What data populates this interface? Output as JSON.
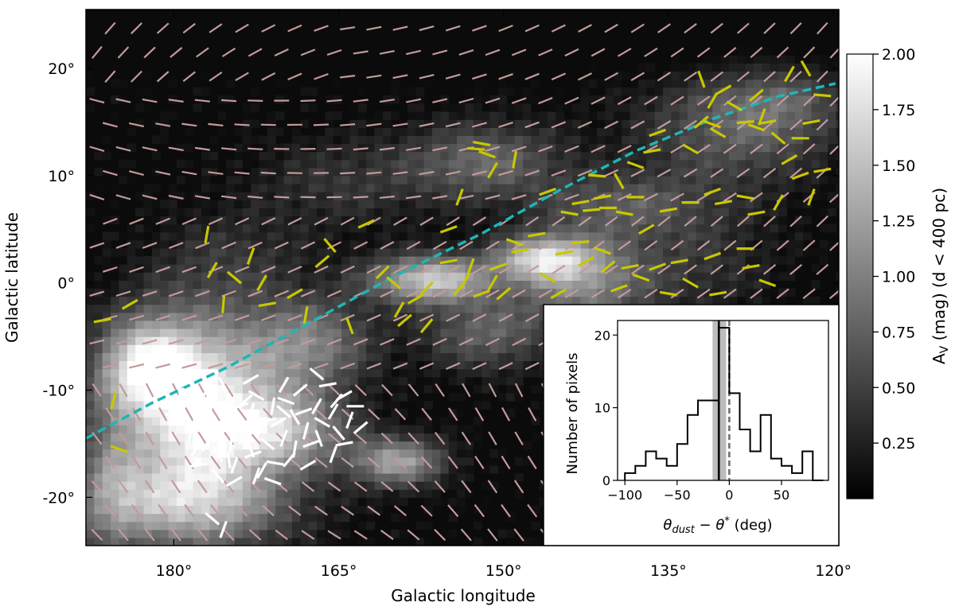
{
  "colors": {
    "planck_segments": "#c49a9a",
    "yellow_segments": "#c8c800",
    "white_segments": "#ffffff",
    "galactic_line": "#1fb5b5",
    "hist_line": "#000000",
    "median_band": "#b0b0b0",
    "zero_line": "#707070"
  },
  "chart_data": [
    {
      "type": "heatmap",
      "subtype": "sky map with polarization segments",
      "xlabel": "Galactic longitude",
      "ylabel": "Galactic latitude",
      "xlim": [
        188,
        119.5
      ],
      "ylim": [
        -24.5,
        25.5
      ],
      "x_ticks": [
        180,
        165,
        150,
        135,
        120
      ],
      "x_tick_labels": [
        "180°",
        "165°",
        "150°",
        "135°",
        "120°"
      ],
      "y_ticks": [
        20,
        10,
        0,
        -10,
        -20
      ],
      "y_tick_labels": [
        "20°",
        "10°",
        "0°",
        "-10°",
        "-20°"
      ],
      "colorbar": {
        "label": "A_V (mag) (d < 400 pc)",
        "range": [
          0,
          2
        ],
        "ticks": [
          0.25,
          0.5,
          0.75,
          1.0,
          1.25,
          1.5,
          1.75,
          2.0
        ],
        "tick_labels": [
          "0.25",
          "0.50",
          "0.75",
          "1.00",
          "1.25",
          "1.50",
          "1.75",
          "2.00"
        ],
        "colormap": "gray"
      },
      "dashed_curve": {
        "description": "cyan dashed curve",
        "x": [
          188,
          182,
          175,
          168,
          160,
          152,
          145,
          138,
          131,
          125,
          119.8
        ],
        "y": [
          -14.5,
          -11.2,
          -7.8,
          -3.9,
          0.6,
          4.6,
          8.6,
          12.3,
          15.3,
          17.4,
          18.6
        ]
      },
      "dust_clouds": [
        {
          "l": 178,
          "b": -12,
          "sx": 5,
          "sy": 6,
          "amp": 1.9
        },
        {
          "l": 183,
          "b": -8,
          "sx": 3,
          "sy": 3,
          "amp": 1.3
        },
        {
          "l": 170,
          "b": -14,
          "sx": 4,
          "sy": 2.5,
          "amp": 1.1
        },
        {
          "l": 160,
          "b": -17,
          "sx": 3,
          "sy": 1.6,
          "amp": 1.2
        },
        {
          "l": 180,
          "b": -21,
          "sx": 7,
          "sy": 3,
          "amp": 1.1
        },
        {
          "l": 168,
          "b": -6,
          "sx": 4,
          "sy": 3,
          "amp": 0.9
        },
        {
          "l": 157,
          "b": 0,
          "sx": 4,
          "sy": 1.6,
          "amp": 1.5
        },
        {
          "l": 147,
          "b": 2,
          "sx": 3,
          "sy": 1.5,
          "amp": 1.3
        },
        {
          "l": 143,
          "b": 0,
          "sx": 4,
          "sy": 3,
          "amp": 1.0
        },
        {
          "l": 152,
          "b": -5,
          "sx": 4,
          "sy": 2.5,
          "amp": 0.7
        },
        {
          "l": 152,
          "b": 11,
          "sx": 5,
          "sy": 2.5,
          "amp": 0.75
        },
        {
          "l": 140,
          "b": 7,
          "sx": 5,
          "sy": 2,
          "amp": 0.55
        },
        {
          "l": 130,
          "b": 14,
          "sx": 6,
          "sy": 4,
          "amp": 0.6
        },
        {
          "l": 125,
          "b": 17,
          "sx": 4,
          "sy": 3,
          "amp": 0.5
        },
        {
          "l": 165,
          "b": 9,
          "sx": 6,
          "sy": 3,
          "amp": 0.35
        },
        {
          "l": 175,
          "b": 2,
          "sx": 5,
          "sy": 3,
          "amp": 0.3
        },
        {
          "l": 133,
          "b": 2,
          "sx": 5,
          "sy": 4,
          "amp": 0.35
        },
        {
          "l": 186,
          "b": -18,
          "sx": 2,
          "sy": 5,
          "amp": 0.5
        }
      ],
      "planck_field": {
        "l_grid": [
          187,
          119.5,
          2.4
        ],
        "b_grid": [
          -23.5,
          25,
          2.25
        ],
        "angle_model": "smooth field, angle in degrees from horizontal"
      },
      "yellow_segments": [
        [
          186.5,
          -3.5,
          10
        ],
        [
          185.5,
          -11,
          75
        ],
        [
          185,
          -15.5,
          -20
        ],
        [
          184,
          -2,
          30
        ],
        [
          177,
          4.5,
          80
        ],
        [
          176.5,
          1.2,
          60
        ],
        [
          175.5,
          -2,
          85
        ],
        [
          174.5,
          0.5,
          -40
        ],
        [
          173,
          2.5,
          70
        ],
        [
          172,
          0,
          60
        ],
        [
          171.5,
          -2,
          10
        ],
        [
          169,
          -1,
          30
        ],
        [
          168,
          -3,
          80
        ],
        [
          166.5,
          2,
          40
        ],
        [
          165.8,
          3.5,
          -50
        ],
        [
          164,
          -4,
          -70
        ],
        [
          162.5,
          5.5,
          25
        ],
        [
          161,
          1,
          45
        ],
        [
          160,
          0,
          -40
        ],
        [
          159.5,
          -2.5,
          60
        ],
        [
          159,
          -3.5,
          40
        ],
        [
          158,
          -1.5,
          30
        ],
        [
          157,
          -0.5,
          45
        ],
        [
          157,
          -4,
          50
        ],
        [
          155,
          2,
          10
        ],
        [
          154,
          -0.5,
          50
        ],
        [
          153.5,
          0.2,
          60
        ],
        [
          153,
          1.5,
          70
        ],
        [
          152,
          -1,
          20
        ],
        [
          151,
          0,
          60
        ],
        [
          150.5,
          1.5,
          20
        ],
        [
          150,
          -1,
          40
        ],
        [
          149,
          3.8,
          -20
        ],
        [
          148.5,
          3,
          10
        ],
        [
          147,
          4.5,
          10
        ],
        [
          146,
          0.5,
          -30
        ],
        [
          145,
          -1,
          30
        ],
        [
          144.5,
          2.8,
          10
        ],
        [
          143,
          3.8,
          5
        ],
        [
          142.5,
          2,
          30
        ],
        [
          141,
          3,
          -20
        ],
        [
          140.5,
          1.5,
          40
        ],
        [
          139.5,
          -0.5,
          20
        ],
        [
          138.5,
          1.5,
          10
        ],
        [
          137.5,
          0.5,
          -20
        ],
        [
          136,
          1.5,
          20
        ],
        [
          135,
          -1,
          -10
        ],
        [
          134,
          2,
          10
        ],
        [
          133,
          0,
          -30
        ],
        [
          130.5,
          -1,
          10
        ],
        [
          131,
          2.5,
          20
        ],
        [
          128,
          3.2,
          0
        ],
        [
          127.5,
          1.5,
          10
        ],
        [
          126,
          0,
          -20
        ],
        [
          155,
          5,
          20
        ],
        [
          154,
          8,
          70
        ],
        [
          152.5,
          12.5,
          -5
        ],
        [
          152,
          13,
          -10
        ],
        [
          151,
          10.5,
          60
        ],
        [
          151.5,
          12,
          -20
        ],
        [
          149,
          11.5,
          80
        ],
        [
          146,
          8.5,
          20
        ],
        [
          144,
          6.5,
          -10
        ],
        [
          143,
          7.5,
          10
        ],
        [
          142,
          6.8,
          5
        ],
        [
          141,
          8,
          10
        ],
        [
          140.5,
          7,
          0
        ],
        [
          139,
          6.5,
          -10
        ],
        [
          138,
          8,
          0
        ],
        [
          137,
          5,
          30
        ],
        [
          135,
          6.8,
          10
        ],
        [
          133,
          7.5,
          0
        ],
        [
          131,
          8.5,
          20
        ],
        [
          130,
          7.5,
          10
        ],
        [
          128,
          8,
          -10
        ],
        [
          127,
          6.5,
          10
        ],
        [
          125,
          7.5,
          60
        ],
        [
          141.5,
          10,
          -5
        ],
        [
          139.5,
          9.5,
          -60
        ],
        [
          138,
          11,
          -20
        ],
        [
          136.5,
          12.3,
          10
        ],
        [
          136,
          14,
          20
        ],
        [
          133,
          12.5,
          -30
        ],
        [
          132,
          15,
          40
        ],
        [
          131,
          14.8,
          -20
        ],
        [
          130.5,
          14,
          -30
        ],
        [
          129,
          16.5,
          -30
        ],
        [
          128,
          15,
          5
        ],
        [
          127,
          14.5,
          -20
        ],
        [
          126,
          15,
          10
        ],
        [
          125,
          13.5,
          -40
        ],
        [
          124,
          11.5,
          30
        ],
        [
          123,
          10,
          20
        ],
        [
          122,
          15,
          10
        ],
        [
          121,
          17.5,
          -5
        ],
        [
          124,
          19.5,
          60
        ],
        [
          122.5,
          20,
          -60
        ],
        [
          130,
          18,
          30
        ],
        [
          132,
          19,
          -70
        ],
        [
          131,
          17,
          60
        ],
        [
          127,
          17.5,
          40
        ],
        [
          126.5,
          15.5,
          70
        ],
        [
          123,
          13.5,
          0
        ],
        [
          121,
          10.5,
          10
        ],
        [
          122,
          8,
          70
        ]
      ],
      "white_segments": [
        [
          181,
          -9,
          30
        ],
        [
          179,
          -12,
          -70
        ],
        [
          178.5,
          -14,
          75
        ],
        [
          177.5,
          -13,
          -20
        ],
        [
          177,
          -15,
          60
        ],
        [
          176.5,
          -11,
          80
        ],
        [
          176,
          -16,
          -60
        ],
        [
          175.5,
          -13.5,
          10
        ],
        [
          175,
          -12,
          -40
        ],
        [
          174.8,
          -15,
          85
        ],
        [
          174.5,
          -17,
          70
        ],
        [
          174,
          -13,
          -10
        ],
        [
          173.5,
          -14.5,
          40
        ],
        [
          173,
          -12,
          70
        ],
        [
          172.8,
          -16,
          20
        ],
        [
          172.5,
          -10.5,
          -30
        ],
        [
          172,
          -13.5,
          60
        ],
        [
          171.5,
          -15,
          -40
        ],
        [
          171,
          -11.5,
          80
        ],
        [
          170.5,
          -13,
          30
        ],
        [
          170,
          -14.5,
          70
        ],
        [
          169.8,
          -11,
          -20
        ],
        [
          169.5,
          -16.5,
          50
        ],
        [
          169,
          -12.5,
          -60
        ],
        [
          168.5,
          -10,
          40
        ],
        [
          168,
          -13.8,
          75
        ],
        [
          167.5,
          -15,
          20
        ],
        [
          167,
          -11.5,
          60
        ],
        [
          166.5,
          -13,
          -30
        ],
        [
          166,
          -9.5,
          10
        ],
        [
          165.5,
          -12,
          60
        ],
        [
          165,
          -14,
          -50
        ],
        [
          164.5,
          -10.5,
          30
        ],
        [
          164,
          -12.8,
          70
        ],
        [
          177,
          -10,
          60
        ],
        [
          176,
          -14,
          -30
        ],
        [
          175,
          -16.5,
          -80
        ],
        [
          173.5,
          -11,
          40
        ],
        [
          172,
          -17.5,
          60
        ],
        [
          170.8,
          -16.8,
          -10
        ],
        [
          169,
          -15.5,
          80
        ],
        [
          167.8,
          -17,
          30
        ],
        [
          176.5,
          -12.5,
          -50
        ],
        [
          174,
          -11.5,
          20
        ],
        [
          173,
          -15.5,
          -70
        ],
        [
          171.5,
          -12.8,
          10
        ],
        [
          170,
          -12,
          -40
        ],
        [
          168.2,
          -12,
          20
        ],
        [
          166.8,
          -14.5,
          -70
        ],
        [
          165.2,
          -11,
          50
        ],
        [
          163.5,
          -11.5,
          0
        ],
        [
          163,
          -13.5,
          40
        ],
        [
          178,
          -15.5,
          60
        ],
        [
          177.8,
          -17,
          10
        ],
        [
          176,
          -18,
          -50
        ],
        [
          174.5,
          -18.5,
          30
        ],
        [
          172.5,
          -18,
          70
        ],
        [
          171,
          -18.5,
          -20
        ],
        [
          175.5,
          -9.5,
          -60
        ],
        [
          173,
          -9,
          30
        ],
        [
          170,
          -9.5,
          60
        ],
        [
          167,
          -8.5,
          -40
        ],
        [
          165.5,
          -16,
          70
        ],
        [
          164.5,
          -15,
          10
        ],
        [
          176.5,
          -22,
          -40
        ],
        [
          175.5,
          -23,
          70
        ],
        [
          180,
          -12.5,
          -20
        ],
        [
          179.5,
          -10.5,
          60
        ]
      ]
    },
    {
      "type": "bar",
      "subtype": "step histogram (inset)",
      "xlabel": "θ_dust − θ* (deg)",
      "ylabel": "Number of pixels",
      "xlim": [
        -107,
        95
      ],
      "ylim": [
        0,
        22
      ],
      "x_ticks": [
        -100,
        -50,
        0,
        50
      ],
      "x_tick_labels": [
        "−100",
        "−50",
        "0",
        "50"
      ],
      "y_ticks": [
        0,
        10,
        20
      ],
      "y_tick_labels": [
        "0",
        "10",
        "20"
      ],
      "bin_edges": [
        -100,
        -90,
        -80,
        -70,
        -60,
        -50,
        -40,
        -30,
        -20,
        -10,
        0,
        10,
        20,
        30,
        40,
        50,
        60,
        70,
        80,
        90
      ],
      "counts": [
        1,
        2,
        4,
        3,
        2,
        5,
        9,
        11,
        11,
        21,
        12,
        7,
        4,
        9,
        3,
        2,
        1,
        4,
        0
      ],
      "median_line": -10,
      "median_band": [
        -16,
        -3
      ],
      "zero_reference": 0
    }
  ]
}
